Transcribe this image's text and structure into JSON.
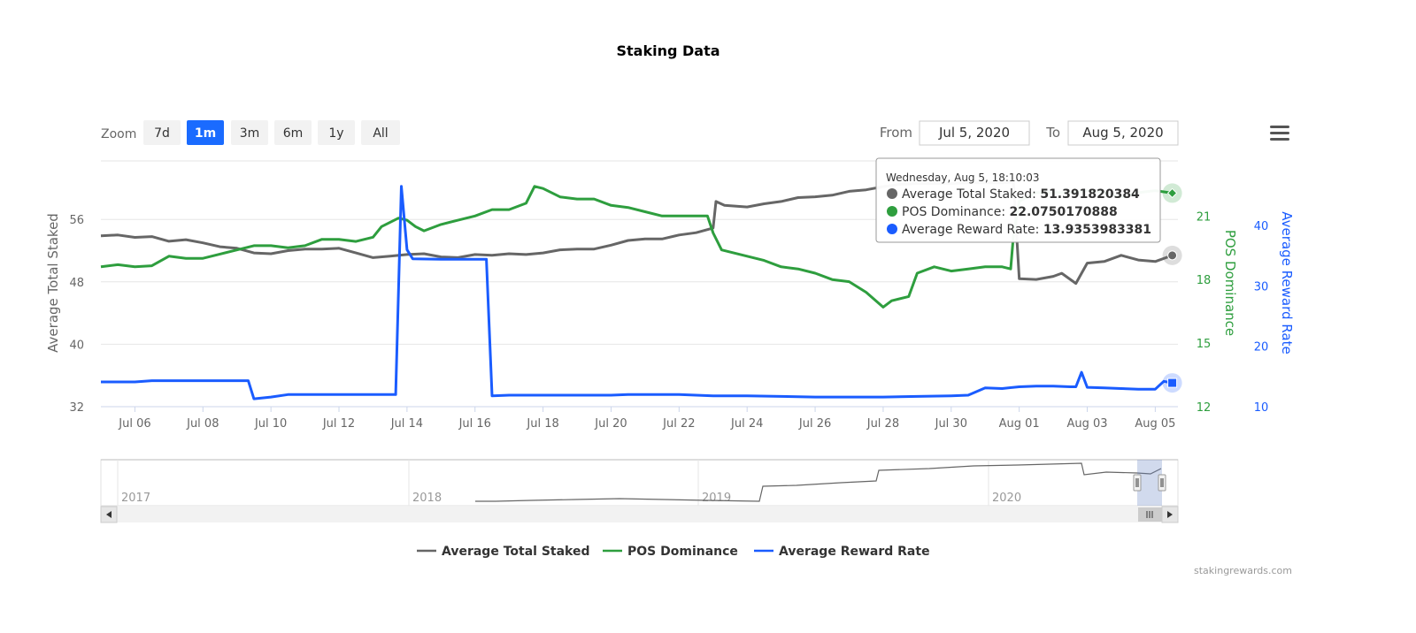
{
  "chart_data": {
    "type": "line",
    "title": "Staking Data",
    "credit": "stakingrewards.com",
    "zoom": {
      "label": "Zoom",
      "buttons": [
        "7d",
        "1m",
        "3m",
        "6m",
        "1y",
        "All"
      ],
      "selected": "1m"
    },
    "range": {
      "from_label": "From",
      "from_value": "Jul 5, 2020",
      "to_label": "To",
      "to_value": "Aug 5, 2020"
    },
    "x_axis": {
      "type": "date",
      "start": "2020-07-05",
      "end": "2020-08-05",
      "tick_labels": [
        "Jul 06",
        "Jul 08",
        "Jul 10",
        "Jul 12",
        "Jul 14",
        "Jul 16",
        "Jul 18",
        "Jul 20",
        "Jul 22",
        "Jul 24",
        "Jul 26",
        "Jul 28",
        "Jul 30",
        "Aug 01",
        "Aug 03",
        "Aug 05"
      ],
      "tick_dates": [
        "2020-07-06",
        "2020-07-08",
        "2020-07-10",
        "2020-07-12",
        "2020-07-14",
        "2020-07-16",
        "2020-07-18",
        "2020-07-20",
        "2020-07-22",
        "2020-07-24",
        "2020-07-26",
        "2020-07-28",
        "2020-07-30",
        "2020-08-01",
        "2020-08-03",
        "2020-08-05"
      ]
    },
    "y_axes": [
      {
        "id": "staked",
        "label": "Average Total Staked",
        "ticks": [
          32,
          40,
          48,
          56
        ],
        "range": [
          32,
          63.5
        ],
        "color": "#666666",
        "position": "left"
      },
      {
        "id": "dominance",
        "label": "POS Dominance",
        "ticks": [
          12,
          15,
          18,
          21
        ],
        "range": [
          12,
          23.6
        ],
        "color": "#2e9e3e",
        "position": "right"
      },
      {
        "id": "reward",
        "label": "Average Reward Rate",
        "ticks": [
          10,
          20,
          30,
          40
        ],
        "range": [
          10,
          50.7
        ],
        "color": "#1a5cff",
        "position": "right"
      }
    ],
    "grid": true,
    "legend_position": "bottom-center",
    "series": [
      {
        "name": "Average Total Staked",
        "axis": "staked",
        "color": "#666666",
        "points": [
          [
            "2020-07-05",
            53.9
          ],
          [
            "2020-07-05 12:00",
            54.0
          ],
          [
            "2020-07-06",
            53.7
          ],
          [
            "2020-07-06 12:00",
            53.8
          ],
          [
            "2020-07-07",
            53.2
          ],
          [
            "2020-07-07 12:00",
            53.4
          ],
          [
            "2020-07-08",
            53.0
          ],
          [
            "2020-07-08 12:00",
            52.5
          ],
          [
            "2020-07-09",
            52.3
          ],
          [
            "2020-07-09 12:00",
            51.7
          ],
          [
            "2020-07-10",
            51.6
          ],
          [
            "2020-07-10 12:00",
            52.0
          ],
          [
            "2020-07-11",
            52.2
          ],
          [
            "2020-07-11 12:00",
            52.2
          ],
          [
            "2020-07-12",
            52.3
          ],
          [
            "2020-07-12 12:00",
            51.7
          ],
          [
            "2020-07-13",
            51.1
          ],
          [
            "2020-07-13 12:00",
            51.3
          ],
          [
            "2020-07-14",
            51.5
          ],
          [
            "2020-07-14 12:00",
            51.6
          ],
          [
            "2020-07-15",
            51.2
          ],
          [
            "2020-07-15 12:00",
            51.1
          ],
          [
            "2020-07-16",
            51.5
          ],
          [
            "2020-07-16 12:00",
            51.4
          ],
          [
            "2020-07-17",
            51.6
          ],
          [
            "2020-07-17 12:00",
            51.5
          ],
          [
            "2020-07-18",
            51.7
          ],
          [
            "2020-07-18 12:00",
            52.1
          ],
          [
            "2020-07-19",
            52.2
          ],
          [
            "2020-07-19 12:00",
            52.2
          ],
          [
            "2020-07-20",
            52.7
          ],
          [
            "2020-07-20 12:00",
            53.3
          ],
          [
            "2020-07-21",
            53.5
          ],
          [
            "2020-07-21 12:00",
            53.5
          ],
          [
            "2020-07-22",
            54.0
          ],
          [
            "2020-07-22 12:00",
            54.3
          ],
          [
            "2020-07-22 20:00",
            54.7
          ],
          [
            "2020-07-23",
            54.9
          ],
          [
            "2020-07-23 02:00",
            58.3
          ],
          [
            "2020-07-23 08:00",
            57.8
          ],
          [
            "2020-07-24",
            57.6
          ],
          [
            "2020-07-24 12:00",
            58.0
          ],
          [
            "2020-07-25",
            58.3
          ],
          [
            "2020-07-25 12:00",
            58.8
          ],
          [
            "2020-07-26",
            58.9
          ],
          [
            "2020-07-26 12:00",
            59.1
          ],
          [
            "2020-07-27",
            59.6
          ],
          [
            "2020-07-27 12:00",
            59.8
          ],
          [
            "2020-07-28",
            60.2
          ],
          [
            "2020-07-28 12:00",
            60.5
          ],
          [
            "2020-07-29",
            60.6
          ],
          [
            "2020-07-29 12:00",
            60.6
          ],
          [
            "2020-07-30",
            60.6
          ],
          [
            "2020-07-30 12:00",
            60.7
          ],
          [
            "2020-07-31",
            60.7
          ],
          [
            "2020-07-31 12:00",
            60.7
          ],
          [
            "2020-07-31 20:00",
            60.8
          ],
          [
            "2020-08-01",
            48.4
          ],
          [
            "2020-08-01 12:00",
            48.3
          ],
          [
            "2020-08-02",
            48.7
          ],
          [
            "2020-08-02 06:00",
            49.1
          ],
          [
            "2020-08-02 16:00",
            47.8
          ],
          [
            "2020-08-03",
            50.4
          ],
          [
            "2020-08-03 12:00",
            50.6
          ],
          [
            "2020-08-04",
            51.4
          ],
          [
            "2020-08-04 12:00",
            50.8
          ],
          [
            "2020-08-05",
            50.6
          ],
          [
            "2020-08-05 12:00",
            51.39
          ]
        ]
      },
      {
        "name": "POS Dominance",
        "axis": "dominance",
        "color": "#2e9e3e",
        "points": [
          [
            "2020-07-05",
            18.6
          ],
          [
            "2020-07-05 12:00",
            18.7
          ],
          [
            "2020-07-06",
            18.6
          ],
          [
            "2020-07-06 12:00",
            18.65
          ],
          [
            "2020-07-07",
            19.1
          ],
          [
            "2020-07-07 12:00",
            19.0
          ],
          [
            "2020-07-08",
            19.0
          ],
          [
            "2020-07-08 12:00",
            19.2
          ],
          [
            "2020-07-09",
            19.4
          ],
          [
            "2020-07-09 12:00",
            19.6
          ],
          [
            "2020-07-10",
            19.6
          ],
          [
            "2020-07-10 12:00",
            19.5
          ],
          [
            "2020-07-11",
            19.6
          ],
          [
            "2020-07-11 12:00",
            19.9
          ],
          [
            "2020-07-12",
            19.9
          ],
          [
            "2020-07-12 12:00",
            19.8
          ],
          [
            "2020-07-13",
            20.0
          ],
          [
            "2020-07-13 06:00",
            20.5
          ],
          [
            "2020-07-13 18:00",
            20.9
          ],
          [
            "2020-07-14",
            20.8
          ],
          [
            "2020-07-14 06:00",
            20.5
          ],
          [
            "2020-07-14 12:00",
            20.3
          ],
          [
            "2020-07-15",
            20.6
          ],
          [
            "2020-07-15 12:00",
            20.8
          ],
          [
            "2020-07-16",
            21.0
          ],
          [
            "2020-07-16 12:00",
            21.3
          ],
          [
            "2020-07-17",
            21.3
          ],
          [
            "2020-07-17 12:00",
            21.6
          ],
          [
            "2020-07-17 18:00",
            22.4
          ],
          [
            "2020-07-18",
            22.3
          ],
          [
            "2020-07-18 12:00",
            21.9
          ],
          [
            "2020-07-19",
            21.8
          ],
          [
            "2020-07-19 12:00",
            21.8
          ],
          [
            "2020-07-20",
            21.5
          ],
          [
            "2020-07-20 12:00",
            21.4
          ],
          [
            "2020-07-21",
            21.2
          ],
          [
            "2020-07-21 12:00",
            21.0
          ],
          [
            "2020-07-22",
            21.0
          ],
          [
            "2020-07-22 12:00",
            21.0
          ],
          [
            "2020-07-22 20:00",
            21.0
          ],
          [
            "2020-07-23",
            20.2
          ],
          [
            "2020-07-23 06:00",
            19.4
          ],
          [
            "2020-07-24",
            19.1
          ],
          [
            "2020-07-24 12:00",
            18.9
          ],
          [
            "2020-07-25",
            18.6
          ],
          [
            "2020-07-25 12:00",
            18.5
          ],
          [
            "2020-07-26",
            18.3
          ],
          [
            "2020-07-26 12:00",
            18.0
          ],
          [
            "2020-07-27",
            17.9
          ],
          [
            "2020-07-27 12:00",
            17.4
          ],
          [
            "2020-07-28",
            16.7
          ],
          [
            "2020-07-28 06:00",
            17.0
          ],
          [
            "2020-07-28 18:00",
            17.2
          ],
          [
            "2020-07-29",
            18.3
          ],
          [
            "2020-07-29 12:00",
            18.6
          ],
          [
            "2020-07-30",
            18.4
          ],
          [
            "2020-07-30 12:00",
            18.5
          ],
          [
            "2020-07-31",
            18.6
          ],
          [
            "2020-07-31 12:00",
            18.6
          ],
          [
            "2020-07-31 18:00",
            18.5
          ],
          [
            "2020-07-31 20:00",
            20.1
          ],
          [
            "2020-08-01",
            21.7
          ],
          [
            "2020-08-01 12:00",
            22.1
          ],
          [
            "2020-08-02",
            22.1
          ],
          [
            "2020-08-02 12:00",
            22.1
          ],
          [
            "2020-08-03",
            22.2
          ],
          [
            "2020-08-03 12:00",
            22.1
          ],
          [
            "2020-08-04",
            21.9
          ],
          [
            "2020-08-04 12:00",
            22.1
          ],
          [
            "2020-08-05",
            22.2
          ],
          [
            "2020-08-05 12:00",
            22.08
          ]
        ]
      },
      {
        "name": "Average Reward Rate",
        "axis": "reward",
        "color": "#1a5cff",
        "points": [
          [
            "2020-07-05",
            14.1
          ],
          [
            "2020-07-05 12:00",
            14.1
          ],
          [
            "2020-07-06",
            14.1
          ],
          [
            "2020-07-06 12:00",
            14.3
          ],
          [
            "2020-07-07",
            14.3
          ],
          [
            "2020-07-07 12:00",
            14.3
          ],
          [
            "2020-07-08",
            14.3
          ],
          [
            "2020-07-08 12:00",
            14.3
          ],
          [
            "2020-07-09",
            14.3
          ],
          [
            "2020-07-09 08:00",
            14.3
          ],
          [
            "2020-07-09 12:00",
            11.3
          ],
          [
            "2020-07-10",
            11.6
          ],
          [
            "2020-07-10 12:00",
            12.0
          ],
          [
            "2020-07-11",
            12.0
          ],
          [
            "2020-07-12",
            12.0
          ],
          [
            "2020-07-12 12:00",
            12.0
          ],
          [
            "2020-07-13",
            12.0
          ],
          [
            "2020-07-13 12:00",
            12.0
          ],
          [
            "2020-07-13 16:00",
            12.0
          ],
          [
            "2020-07-13 20:00",
            46.5
          ],
          [
            "2020-07-14",
            36.0
          ],
          [
            "2020-07-14 04:00",
            34.5
          ],
          [
            "2020-07-15",
            34.4
          ],
          [
            "2020-07-15 12:00",
            34.4
          ],
          [
            "2020-07-16",
            34.4
          ],
          [
            "2020-07-16 08:00",
            34.4
          ],
          [
            "2020-07-16 12:00",
            11.8
          ],
          [
            "2020-07-17",
            11.9
          ],
          [
            "2020-07-18",
            11.9
          ],
          [
            "2020-07-19",
            11.9
          ],
          [
            "2020-07-20",
            11.9
          ],
          [
            "2020-07-20 12:00",
            12.0
          ],
          [
            "2020-07-21",
            12.0
          ],
          [
            "2020-07-22",
            12.0
          ],
          [
            "2020-07-23",
            11.8
          ],
          [
            "2020-07-24",
            11.8
          ],
          [
            "2020-07-25",
            11.7
          ],
          [
            "2020-07-26",
            11.6
          ],
          [
            "2020-07-27",
            11.6
          ],
          [
            "2020-07-28",
            11.6
          ],
          [
            "2020-07-29",
            11.7
          ],
          [
            "2020-07-30",
            11.8
          ],
          [
            "2020-07-30 12:00",
            11.9
          ],
          [
            "2020-07-31",
            13.1
          ],
          [
            "2020-07-31 12:00",
            13.0
          ],
          [
            "2020-08-01",
            13.3
          ],
          [
            "2020-08-01 12:00",
            13.4
          ],
          [
            "2020-08-02",
            13.4
          ],
          [
            "2020-08-02 12:00",
            13.3
          ],
          [
            "2020-08-02 16:00",
            13.3
          ],
          [
            "2020-08-02 20:00",
            15.7
          ],
          [
            "2020-08-03",
            13.2
          ],
          [
            "2020-08-03 12:00",
            13.1
          ],
          [
            "2020-08-04",
            13.0
          ],
          [
            "2020-08-04 12:00",
            12.9
          ],
          [
            "2020-08-05",
            12.9
          ],
          [
            "2020-08-05 06:00",
            14.2
          ],
          [
            "2020-08-05 12:00",
            13.94
          ]
        ]
      }
    ],
    "tooltip": {
      "header": "Wednesday, Aug 5, 18:10:03",
      "rows": [
        {
          "label": "Average Total Staked",
          "value": "51.391820384",
          "color": "#666666"
        },
        {
          "label": "POS Dominance",
          "value": "22.0750170888",
          "color": "#2e9e3e"
        },
        {
          "label": "Average Reward Rate",
          "value": "13.9353983381",
          "color": "#1a5cff"
        }
      ]
    },
    "navigator": {
      "year_labels": [
        "2017",
        "2018",
        "2019",
        "2020"
      ]
    }
  }
}
